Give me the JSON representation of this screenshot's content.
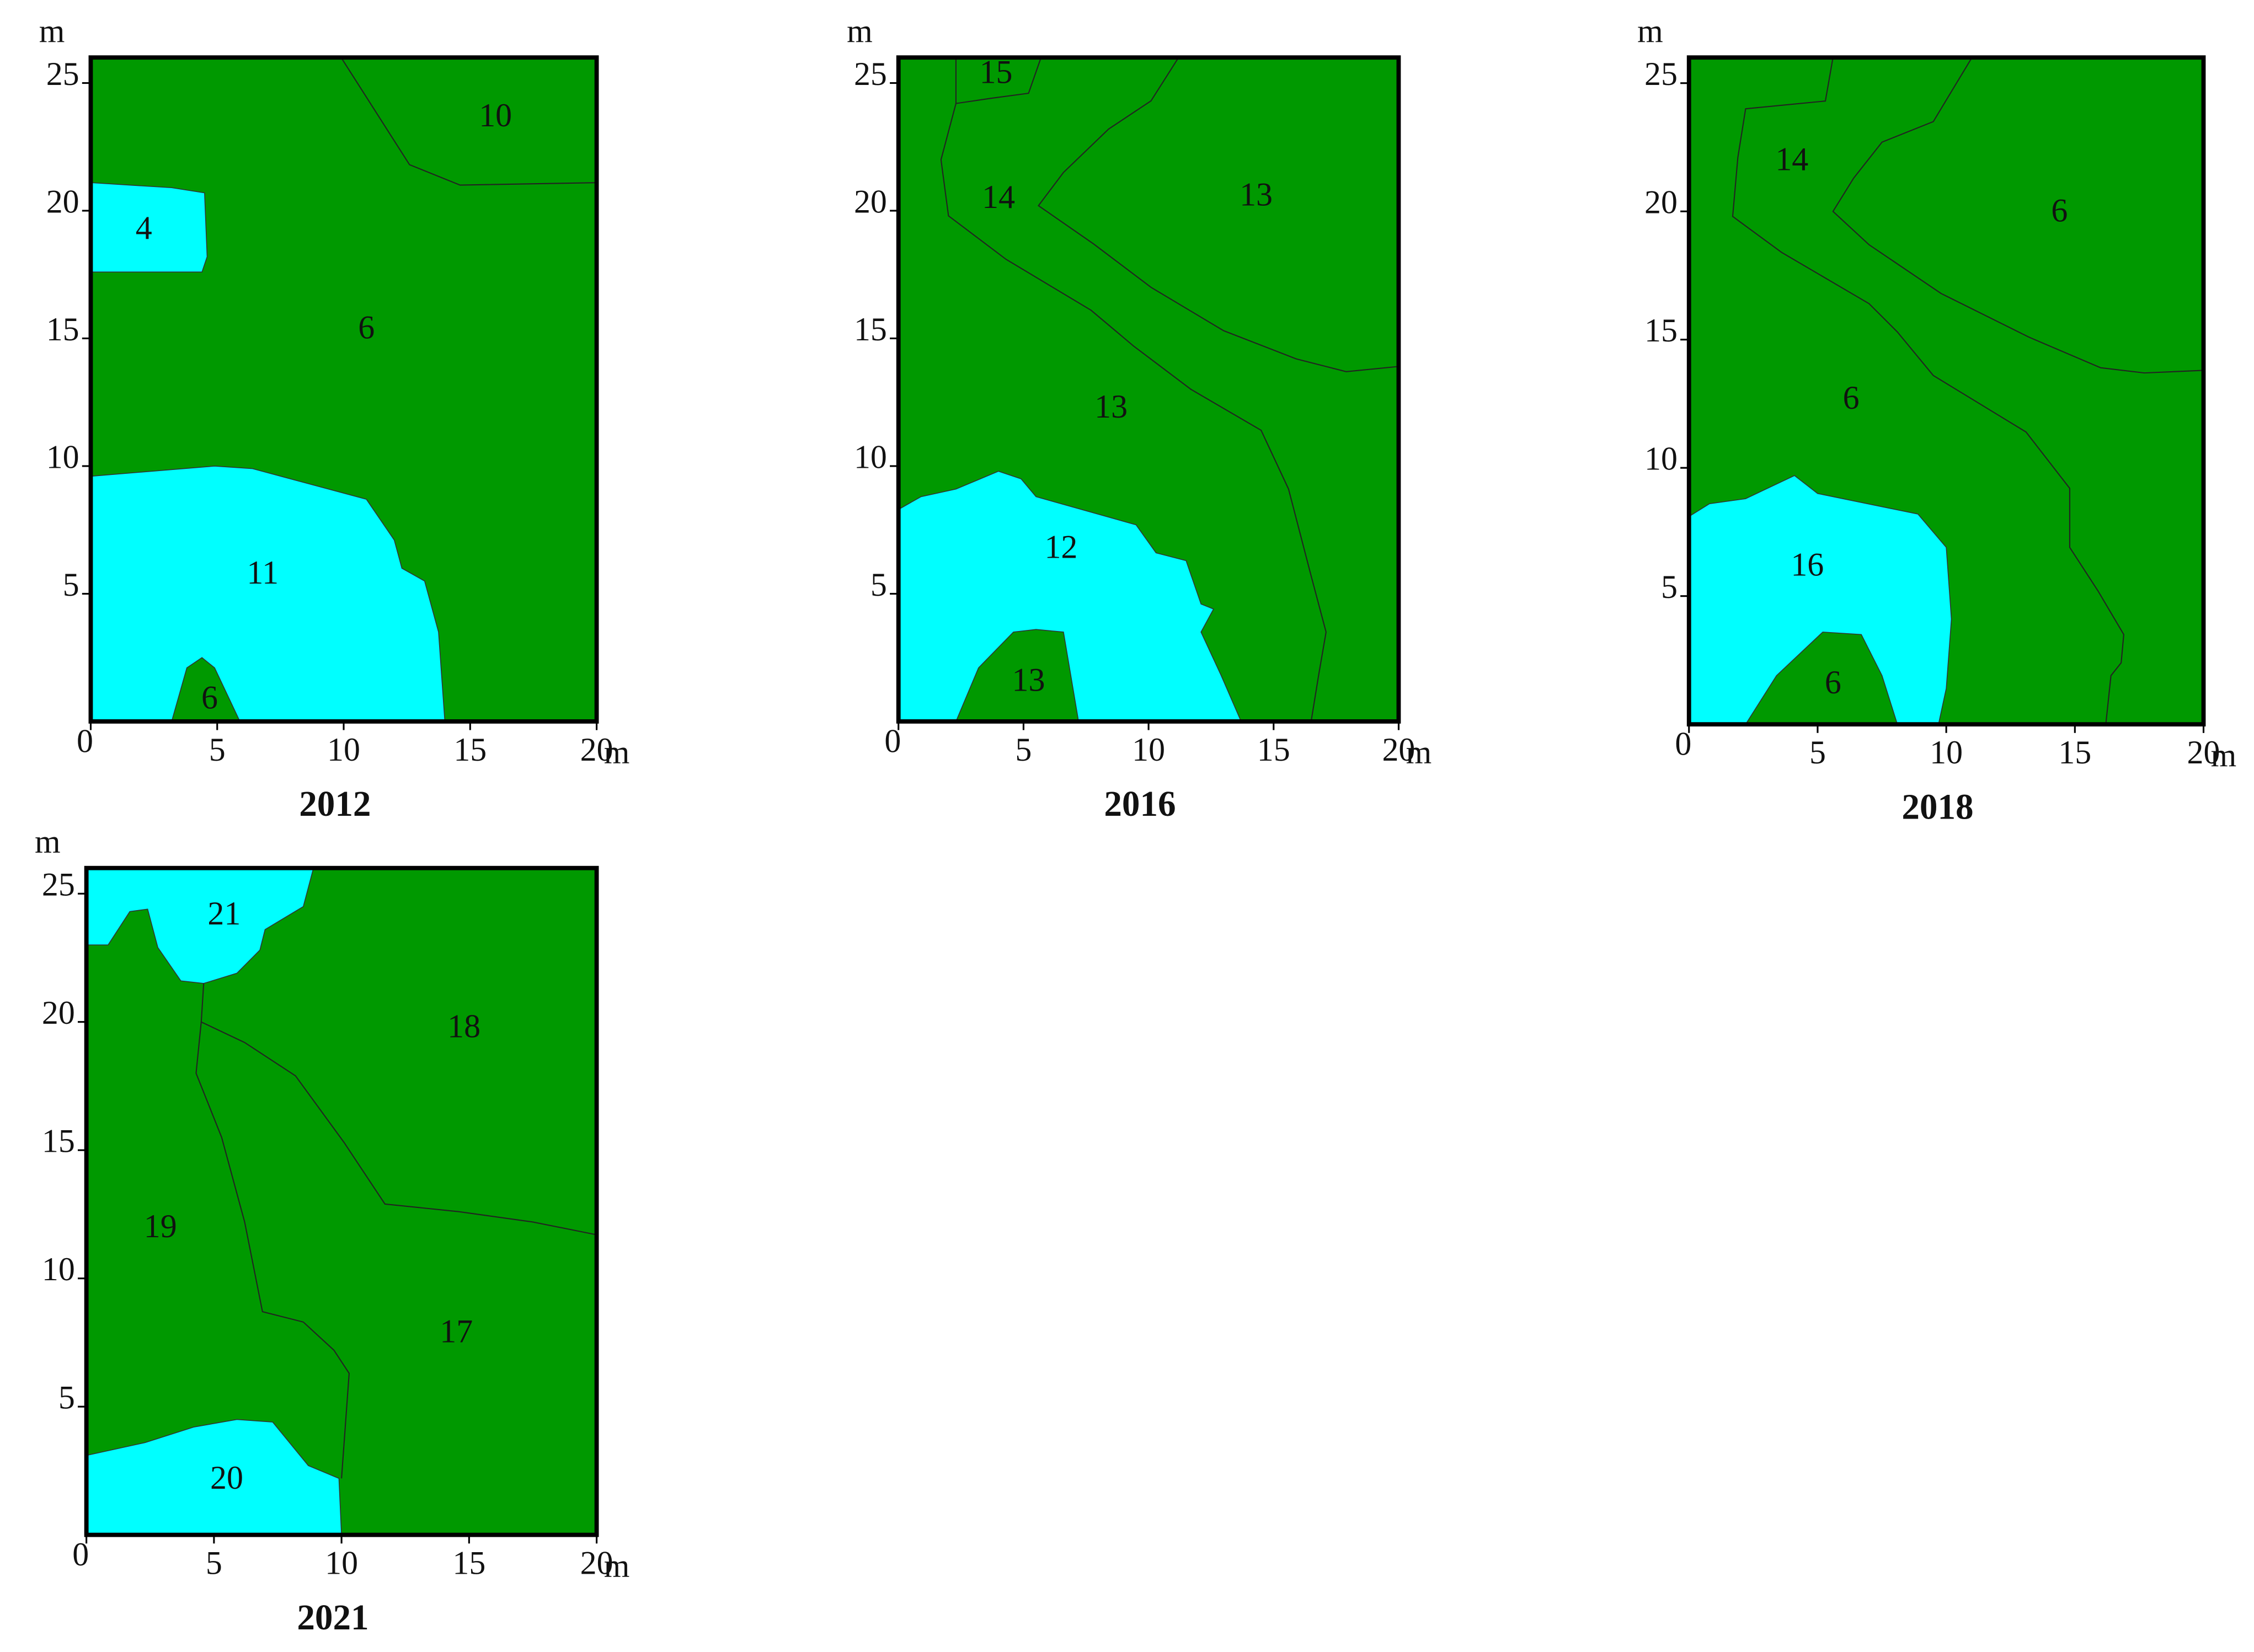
{
  "chart_data": [
    {
      "type": "patch-map",
      "title": "2012",
      "x_label": "m",
      "y_label": "m",
      "xlim": [
        0,
        20
      ],
      "ylim": [
        0,
        26
      ],
      "xticks": [
        0,
        5,
        10,
        15,
        20
      ],
      "yticks": [
        5,
        10,
        15,
        20,
        25
      ],
      "base_color": "#009900",
      "patch_color": "#00ffff",
      "patch_labels": [
        "10",
        "4",
        "6",
        "11",
        "6"
      ]
    },
    {
      "type": "patch-map",
      "title": "2016",
      "x_label": "m",
      "y_label": "m",
      "xlim": [
        0,
        20
      ],
      "ylim": [
        0,
        26
      ],
      "xticks": [
        0,
        5,
        10,
        15,
        20
      ],
      "yticks": [
        5,
        10,
        15,
        20,
        25
      ],
      "base_color": "#009900",
      "patch_color": "#00ffff",
      "patch_labels": [
        "15",
        "14",
        "13",
        "13",
        "12",
        "13"
      ]
    },
    {
      "type": "patch-map",
      "title": "2018",
      "x_label": "m",
      "y_label": "m",
      "xlim": [
        0,
        20
      ],
      "ylim": [
        0,
        26
      ],
      "xticks": [
        0,
        5,
        10,
        15,
        20
      ],
      "yticks": [
        5,
        10,
        15,
        20,
        25
      ],
      "base_color": "#009900",
      "patch_color": "#00ffff",
      "patch_labels": [
        "14",
        "6",
        "6",
        "16",
        "6"
      ]
    },
    {
      "type": "patch-map",
      "title": "2021",
      "x_label": "m",
      "y_label": "m",
      "xlim": [
        0,
        20
      ],
      "ylim": [
        0,
        26
      ],
      "xticks": [
        0,
        5,
        10,
        15,
        20
      ],
      "yticks": [
        5,
        10,
        15,
        20,
        25
      ],
      "base_color": "#009900",
      "patch_color": "#00ffff",
      "patch_labels": [
        "21",
        "18",
        "19",
        "17",
        "20"
      ]
    }
  ]
}
